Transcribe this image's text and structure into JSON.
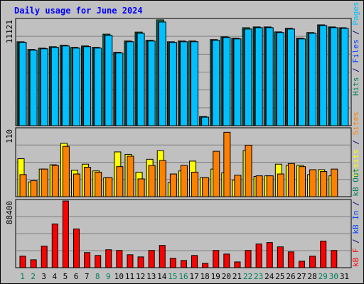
{
  "chart_data": [
    {
      "type": "bar",
      "title": "Daily usage for June 2024",
      "categories": [
        "1",
        "2",
        "3",
        "4",
        "5",
        "6",
        "7",
        "8",
        "9",
        "10",
        "11",
        "12",
        "13",
        "14",
        "15",
        "16",
        "17",
        "18",
        "19",
        "20",
        "21",
        "22",
        "23",
        "24",
        "25",
        "26",
        "27",
        "28",
        "29",
        "30",
        "31"
      ],
      "category_colors": [
        "#00805c",
        "#00805c",
        "#000000",
        "#000000",
        "#000000",
        "#000000",
        "#000000",
        "#00805c",
        "#00805c",
        "#000000",
        "#000000",
        "#000000",
        "#000000",
        "#000000",
        "#00805c",
        "#00805c",
        "#000000",
        "#000000",
        "#000000",
        "#000000",
        "#000000",
        "#00805c",
        "#00805c",
        "#000000",
        "#000000",
        "#000000",
        "#000000",
        "#000000",
        "#00805c",
        "#00805c",
        "#000000"
      ],
      "legend_separator": " / ",
      "ylim": [
        0,
        11121
      ],
      "yticks": [
        11121
      ],
      "series": [
        {
          "name": "Hits",
          "color": "#00805c",
          "values": [
            8820,
            8010,
            8150,
            8300,
            8450,
            8230,
            8380,
            8230,
            9620,
            7710,
            8900,
            9840,
            8970,
            11121,
            8820,
            8900,
            8900,
            960,
            9050,
            9340,
            9190,
            10300,
            10380,
            10380,
            9860,
            10230,
            9190,
            9790,
            10600,
            10380,
            10300
          ]
        },
        {
          "name": "Files",
          "color": "#0040ff",
          "values": [
            8749,
            7932,
            8080,
            8228,
            8377,
            8154,
            8303,
            8154,
            9490,
            7636,
            8822,
            9713,
            8897,
            10898,
            8749,
            8822,
            8822,
            890,
            8971,
            9268,
            9120,
            10157,
            10305,
            10305,
            9787,
            10157,
            9120,
            9713,
            10527,
            10305,
            10230
          ]
        },
        {
          "name": "Pages",
          "color": "#00c0ff",
          "values": [
            8749,
            7932,
            8080,
            8228,
            8377,
            8154,
            8303,
            8154,
            9490,
            7636,
            8822,
            9713,
            8897,
            10898,
            8749,
            8822,
            8822,
            890,
            8971,
            9268,
            9120,
            10157,
            10305,
            10305,
            9787,
            10157,
            9120,
            9713,
            10527,
            10305,
            10230
          ]
        }
      ]
    },
    {
      "type": "bar",
      "ylim": [
        0,
        110
      ],
      "yticks": [
        110
      ],
      "series": [
        {
          "name": "Visits",
          "color": "#ffff00",
          "values": [
            62,
            24,
            45,
            52,
            87,
            43,
            53,
            42,
            31,
            73,
            69,
            40,
            61,
            75,
            23,
            42,
            58,
            31,
            45,
            39,
            27,
            75,
            33,
            34,
            53,
            51,
            51,
            36,
            44,
            34,
            null
          ]
        },
        {
          "name": "Sites",
          "color": "#ff8000",
          "values": [
            36,
            26,
            45,
            51,
            82,
            37,
            48,
            40,
            31,
            49,
            66,
            29,
            51,
            59,
            37,
            51,
            40,
            31,
            74,
            105,
            35,
            84,
            34,
            34,
            37,
            54,
            49,
            44,
            41,
            45,
            null
          ]
        }
      ]
    },
    {
      "type": "bar",
      "ylim": [
        0,
        88400
      ],
      "yticks": [
        88400
      ],
      "series": [
        {
          "name": "kB F",
          "color": "#ff0000",
          "values": [
            15200,
            10450,
            28500,
            57950,
            88350,
            51300,
            19950,
            16150,
            23750,
            22800,
            17100,
            14250,
            22800,
            29450,
            12350,
            9500,
            16150,
            5700,
            22800,
            18050,
            7600,
            22800,
            31350,
            33250,
            27550,
            20900,
            8550,
            15200,
            35150,
            22800,
            null
          ]
        },
        {
          "name": "kB In",
          "color": "#0040ff",
          "values": [
            null,
            null,
            null,
            null,
            null,
            null,
            null,
            null,
            null,
            null,
            null,
            null,
            null,
            null,
            null,
            null,
            null,
            null,
            null,
            null,
            null,
            null,
            null,
            null,
            null,
            null,
            null,
            null,
            null,
            null,
            null
          ]
        },
        {
          "name": "kB Out",
          "color": "#00805c",
          "values": [
            null,
            null,
            null,
            null,
            null,
            null,
            null,
            null,
            null,
            null,
            null,
            null,
            null,
            null,
            null,
            null,
            null,
            null,
            null,
            null,
            null,
            null,
            null,
            null,
            null,
            null,
            null,
            null,
            null,
            null,
            null
          ]
        }
      ]
    }
  ]
}
